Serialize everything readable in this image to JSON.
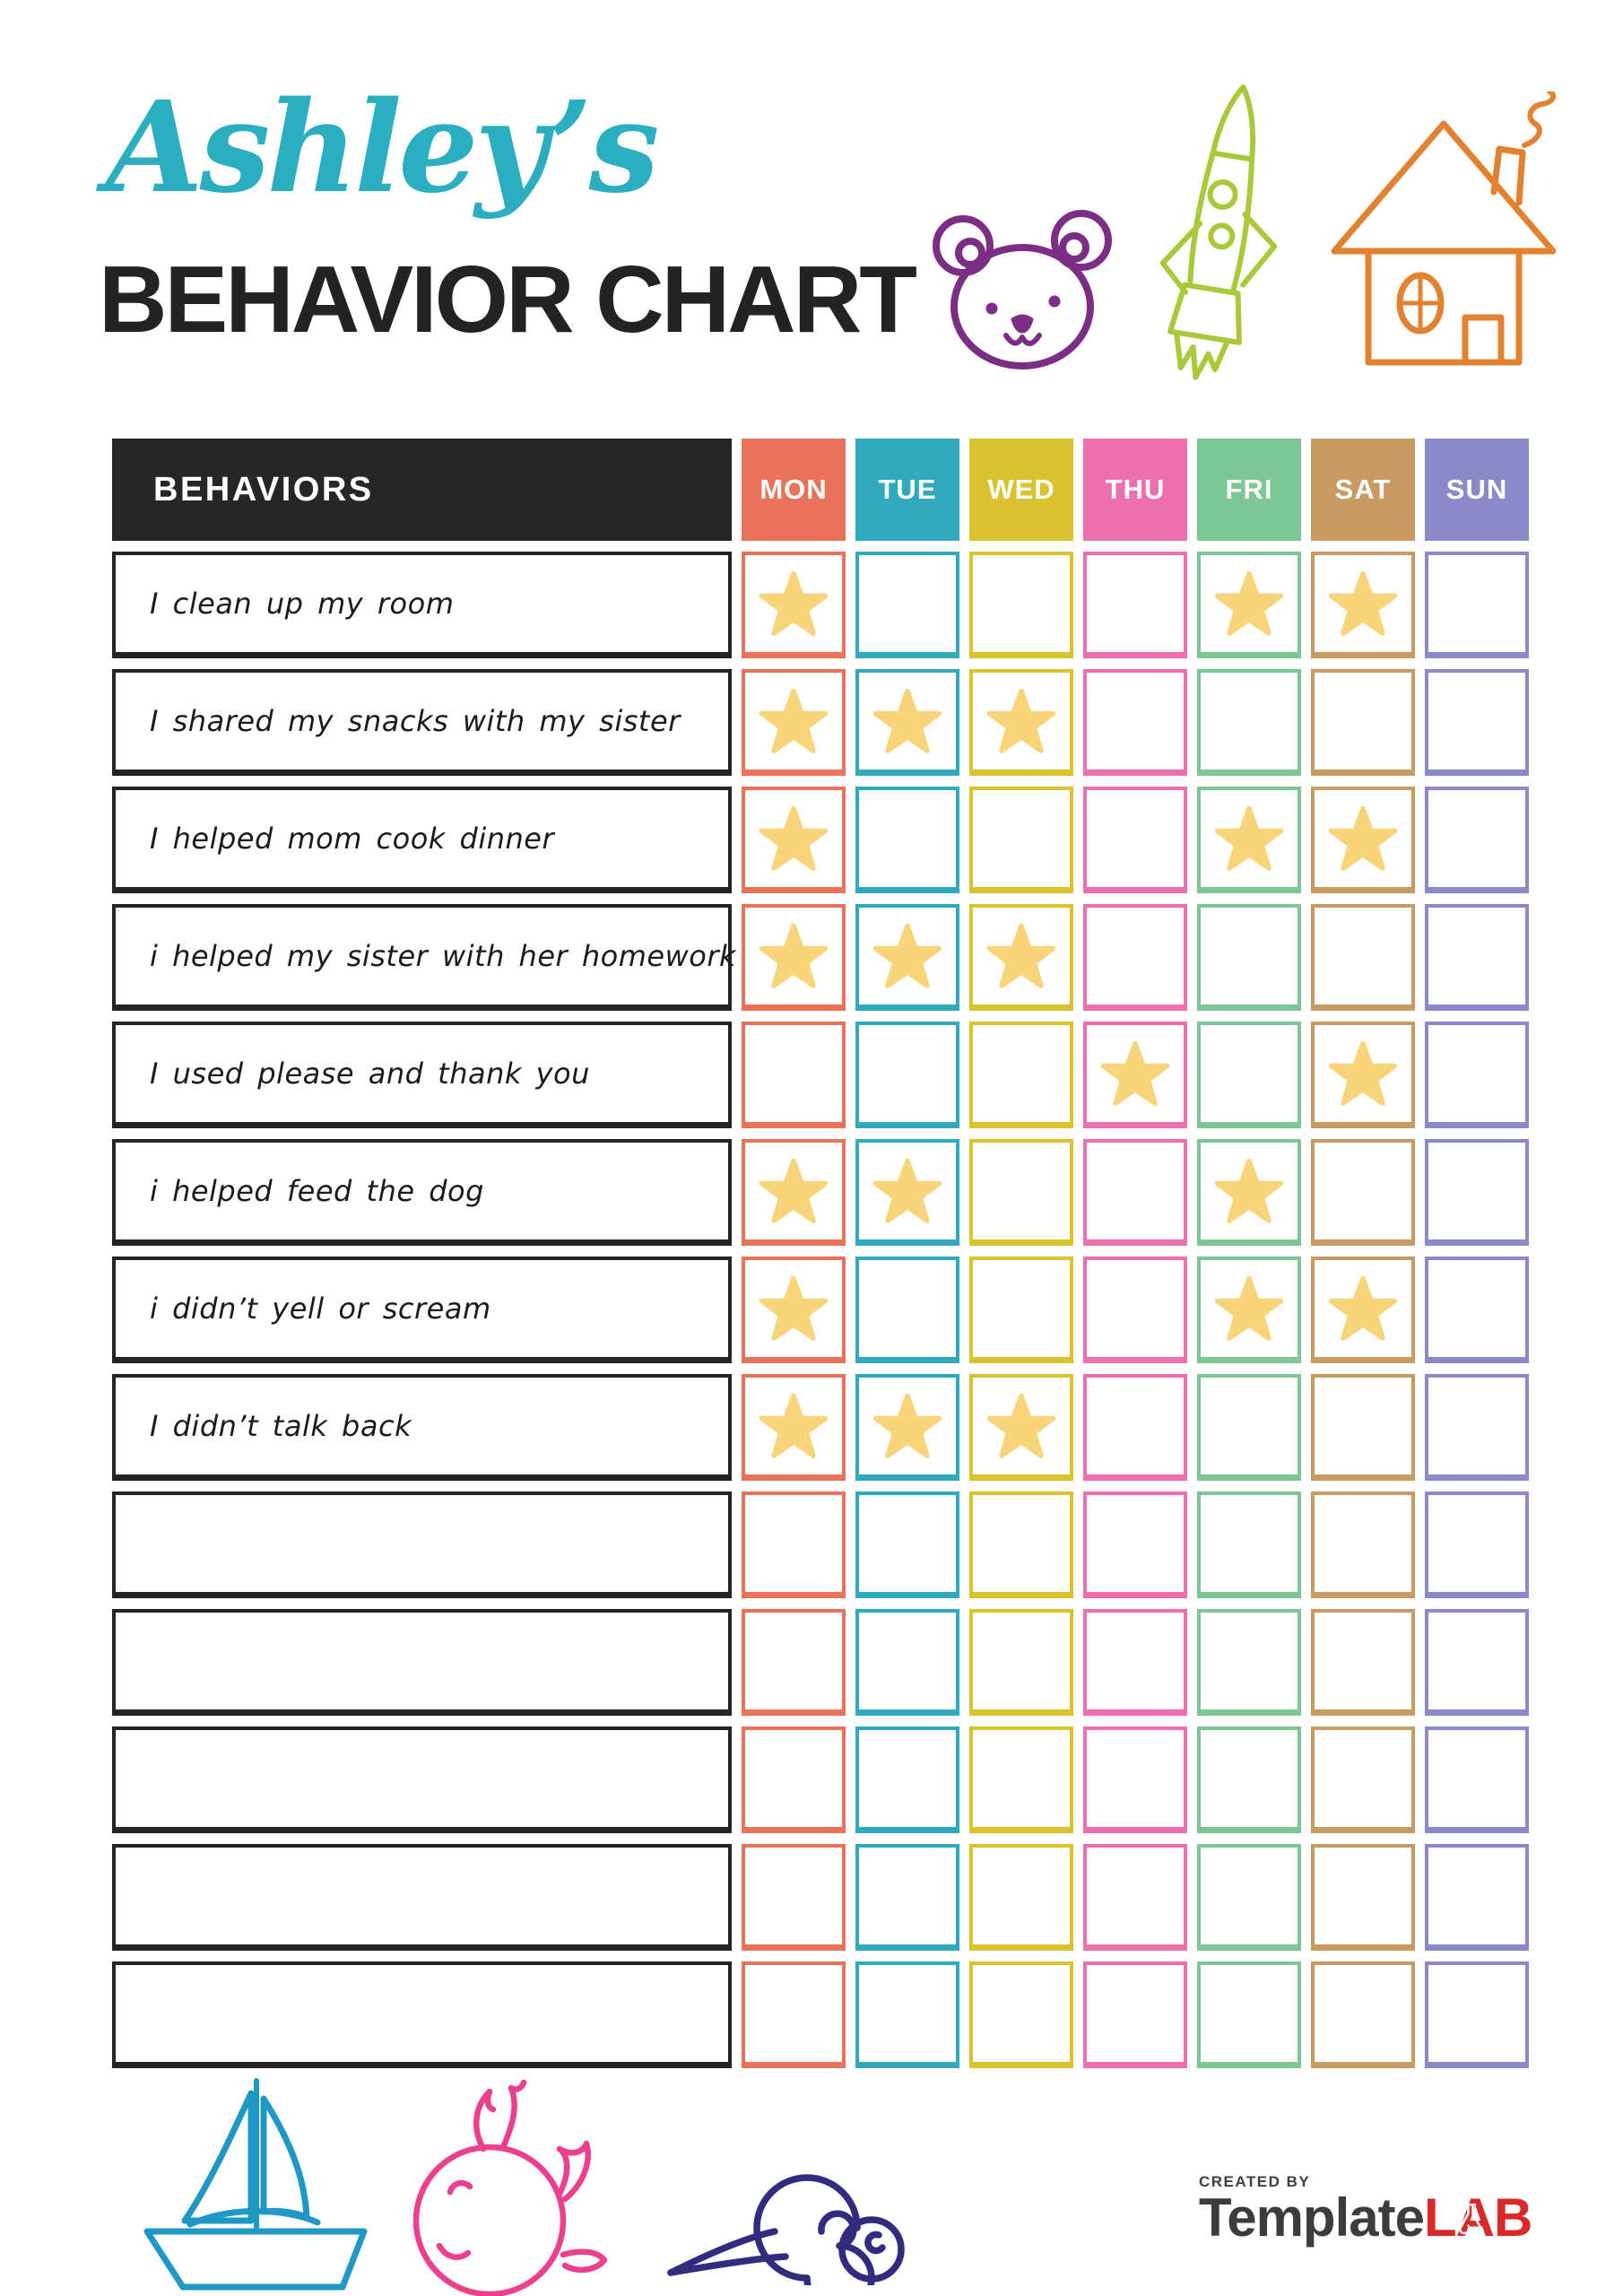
{
  "header": {
    "title_script": "Ashley’s",
    "title_main": "BEHAVIOR CHART",
    "title_script_color": "#2BAEBF",
    "title_main_color": "#232323"
  },
  "table": {
    "behaviors_header": "BEHAVIORS",
    "header_bg": "#262626",
    "star_color": "#F8D47A",
    "days": [
      {
        "label": "MON",
        "color": "#E8735A"
      },
      {
        "label": "TUE",
        "color": "#30A9BD"
      },
      {
        "label": "WED",
        "color": "#D9C32E"
      },
      {
        "label": "THU",
        "color": "#EE6FAE"
      },
      {
        "label": "FRI",
        "color": "#7CC795"
      },
      {
        "label": "SAT",
        "color": "#C89B63"
      },
      {
        "label": "SUN",
        "color": "#8B89C7"
      }
    ],
    "rows": [
      {
        "behavior": "I clean up my room",
        "stars": [
          "MON",
          "FRI",
          "SAT"
        ]
      },
      {
        "behavior": "I shared my snacks with my sister",
        "stars": [
          "MON",
          "TUE",
          "WED"
        ]
      },
      {
        "behavior": "I helped mom cook dinner",
        "stars": [
          "MON",
          "FRI",
          "SAT"
        ]
      },
      {
        "behavior": "i helped my sister with her homework",
        "stars": [
          "MON",
          "TUE",
          "WED"
        ]
      },
      {
        "behavior": "I used please and thank you",
        "stars": [
          "THU",
          "SAT"
        ]
      },
      {
        "behavior": "i helped feed the dog",
        "stars": [
          "MON",
          "TUE",
          "FRI"
        ]
      },
      {
        "behavior": "i didn’t yell or scream",
        "stars": [
          "MON",
          "FRI",
          "SAT"
        ]
      },
      {
        "behavior": "I didn’t talk back",
        "stars": [
          "MON",
          "TUE",
          "WED"
        ]
      },
      {
        "behavior": "",
        "stars": []
      },
      {
        "behavior": "",
        "stars": []
      },
      {
        "behavior": "",
        "stars": []
      },
      {
        "behavior": "",
        "stars": []
      },
      {
        "behavior": "",
        "stars": []
      }
    ]
  },
  "decorations": {
    "top": [
      {
        "name": "teddy-bear",
        "color": "#7C2E84"
      },
      {
        "name": "rocket",
        "color": "#A9C93B"
      },
      {
        "name": "house",
        "color": "#E2812F"
      }
    ],
    "bottom": [
      {
        "name": "sailboat",
        "color": "#2098C5"
      },
      {
        "name": "whale",
        "color": "#EC3F8D"
      },
      {
        "name": "snail",
        "color": "#322C7E"
      }
    ]
  },
  "footer": {
    "created_by": "CREATED BY",
    "brand_template": "Template",
    "brand_lab": "LAB",
    "brand_template_color": "#3C3C3C",
    "brand_lab_color": "#D82A28",
    "created_by_color": "#3E3E3E"
  }
}
